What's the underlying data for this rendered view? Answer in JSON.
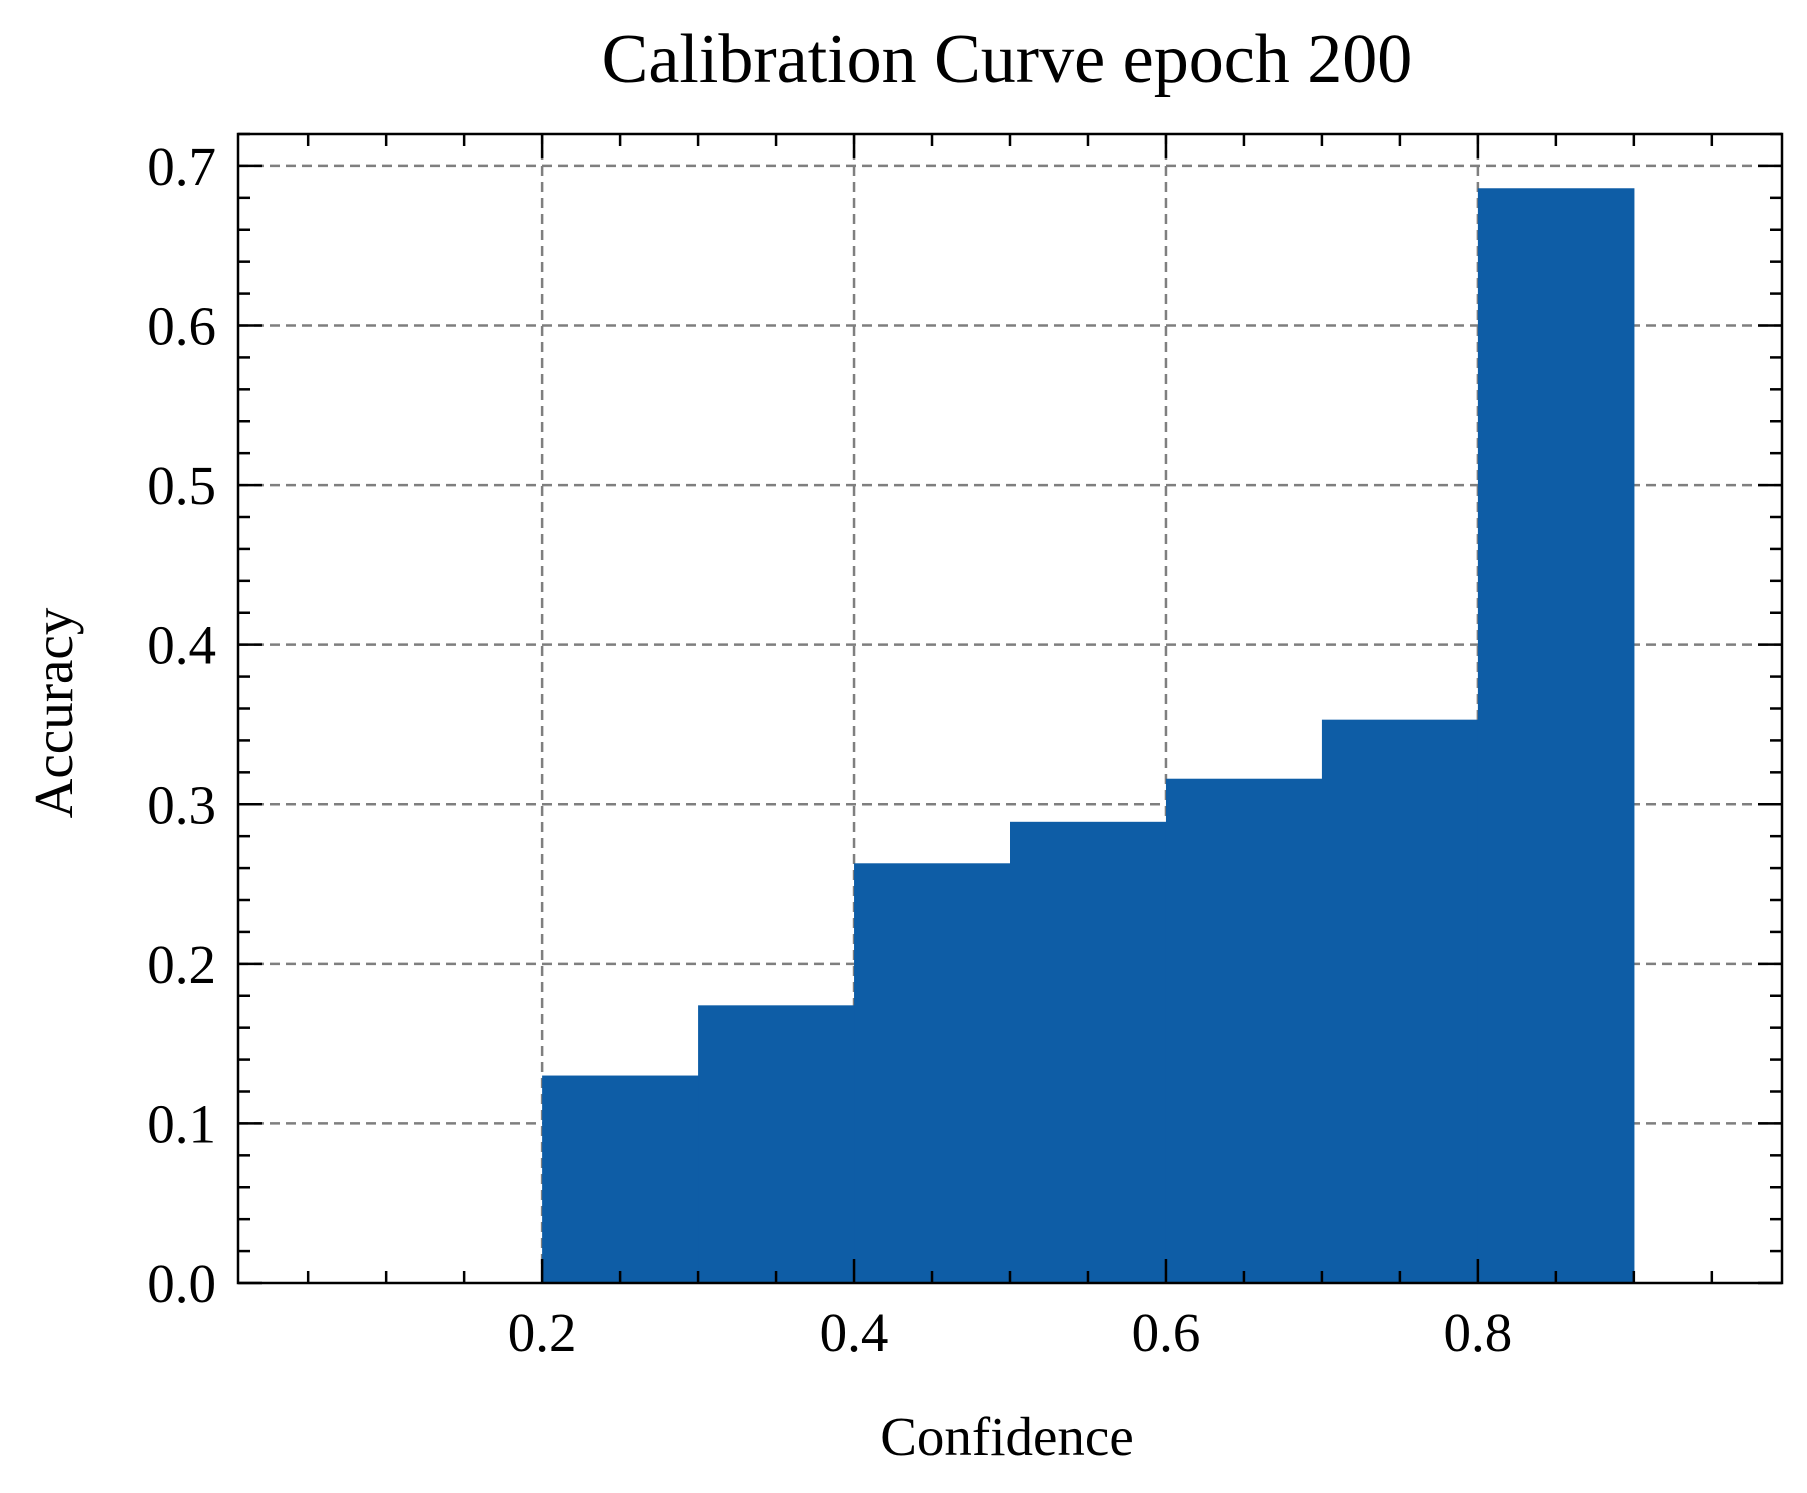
{
  "chart_data": {
    "type": "bar",
    "title": "Calibration Curve epoch 200",
    "xlabel": "Confidence",
    "ylabel": "Accuracy",
    "xlim": [
      0.005,
      0.995
    ],
    "ylim": [
      0.0,
      0.72
    ],
    "xticks": [
      0.2,
      0.4,
      0.6,
      0.8
    ],
    "xtick_labels": [
      "0.2",
      "0.4",
      "0.6",
      "0.8"
    ],
    "yticks": [
      0.0,
      0.1,
      0.2,
      0.3,
      0.4,
      0.5,
      0.6,
      0.7
    ],
    "ytick_labels": [
      "0.0",
      "0.1",
      "0.2",
      "0.3",
      "0.4",
      "0.5",
      "0.6",
      "0.7"
    ],
    "x_minor_step": 0.05,
    "y_minor_step": 0.02,
    "grid": true,
    "bin_width": 0.1,
    "bins": [
      0.05,
      0.15,
      0.25,
      0.35,
      0.45,
      0.55,
      0.65,
      0.75,
      0.85,
      0.95
    ],
    "series": [
      {
        "values": [
          0,
          0,
          0.13,
          0.174,
          0.263,
          0.289,
          0.316,
          0.353,
          0.686,
          0
        ],
        "color": "#0e5da6"
      }
    ]
  }
}
